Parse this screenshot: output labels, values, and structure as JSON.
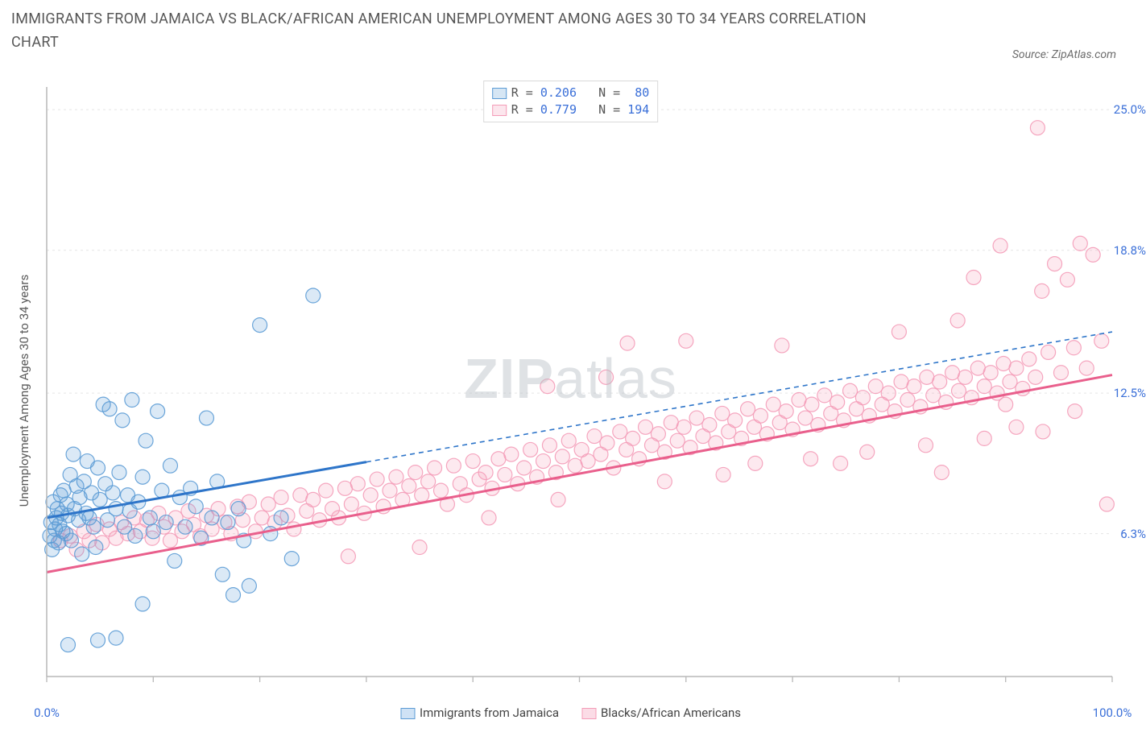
{
  "title": "IMMIGRANTS FROM JAMAICA VS BLACK/AFRICAN AMERICAN UNEMPLOYMENT AMONG AGES 30 TO 34 YEARS CORRELATION CHART",
  "source": "Source: ZipAtlas.com",
  "watermark_a": "ZIP",
  "watermark_b": "atlas",
  "chart": {
    "type": "scatter",
    "xlim": [
      0,
      100
    ],
    "ylim": [
      0,
      26
    ],
    "ylabel": "Unemployment Among Ages 30 to 34 years",
    "yticks": [
      {
        "v": 6.3,
        "l": "6.3%"
      },
      {
        "v": 12.5,
        "l": "12.5%"
      },
      {
        "v": 18.8,
        "l": "18.8%"
      },
      {
        "v": 25.0,
        "l": "25.0%"
      }
    ],
    "xticks": [
      {
        "v": 0,
        "l": "0.0%"
      },
      {
        "v": 100,
        "l": "100.0%"
      }
    ],
    "xticks_minor": [
      10,
      20,
      30,
      40,
      50,
      60,
      70,
      80,
      90
    ],
    "background_color": "#ffffff",
    "grid_color": "#e5e5e5",
    "axis_color": "#b8b8b8",
    "marker_radius": 9,
    "marker_fill_opacity": 0.22,
    "marker_stroke_opacity": 0.9,
    "marker_stroke_width": 1.2,
    "trend_stroke_width": 3,
    "series": [
      {
        "name": "Immigrants from Jamaica",
        "color": "#5b9bd5",
        "stroke": "#2e75c9",
        "R": "0.206",
        "N": "80",
        "trend": {
          "x1": 0,
          "y1": 7.0,
          "x2": 100,
          "y2": 15.2,
          "solid_until_x": 30
        },
        "points": [
          [
            0.3,
            6.2
          ],
          [
            0.4,
            6.8
          ],
          [
            0.5,
            5.6
          ],
          [
            0.6,
            7.7
          ],
          [
            0.7,
            6.0
          ],
          [
            0.8,
            6.5
          ],
          [
            0.9,
            7.0
          ],
          [
            1.0,
            7.4
          ],
          [
            1.1,
            5.9
          ],
          [
            1.2,
            6.7
          ],
          [
            1.3,
            8.0
          ],
          [
            1.4,
            7.2
          ],
          [
            1.5,
            6.4
          ],
          [
            1.6,
            8.2
          ],
          [
            1.8,
            6.3
          ],
          [
            1.9,
            7.6
          ],
          [
            2.0,
            7.1
          ],
          [
            2.2,
            8.9
          ],
          [
            2.3,
            6.0
          ],
          [
            2.5,
            9.8
          ],
          [
            2.6,
            7.4
          ],
          [
            2.8,
            8.4
          ],
          [
            3.0,
            6.9
          ],
          [
            3.1,
            7.9
          ],
          [
            3.3,
            5.4
          ],
          [
            3.5,
            8.6
          ],
          [
            3.7,
            7.2
          ],
          [
            3.8,
            9.5
          ],
          [
            4.0,
            7.0
          ],
          [
            4.2,
            8.1
          ],
          [
            4.4,
            6.6
          ],
          [
            4.6,
            5.7
          ],
          [
            4.8,
            9.2
          ],
          [
            5.0,
            7.8
          ],
          [
            5.3,
            12.0
          ],
          [
            5.5,
            8.5
          ],
          [
            5.7,
            6.9
          ],
          [
            5.9,
            11.8
          ],
          [
            6.2,
            8.1
          ],
          [
            6.5,
            7.4
          ],
          [
            6.8,
            9.0
          ],
          [
            7.1,
            11.3
          ],
          [
            7.3,
            6.6
          ],
          [
            7.6,
            8.0
          ],
          [
            7.8,
            7.3
          ],
          [
            8.0,
            12.2
          ],
          [
            8.3,
            6.2
          ],
          [
            8.6,
            7.7
          ],
          [
            9.0,
            8.8
          ],
          [
            9.3,
            10.4
          ],
          [
            9.7,
            7.0
          ],
          [
            10.0,
            6.4
          ],
          [
            10.4,
            11.7
          ],
          [
            10.8,
            8.2
          ],
          [
            11.2,
            6.8
          ],
          [
            11.6,
            9.3
          ],
          [
            12.0,
            5.1
          ],
          [
            12.5,
            7.9
          ],
          [
            13.0,
            6.6
          ],
          [
            13.5,
            8.3
          ],
          [
            14.0,
            7.5
          ],
          [
            14.5,
            6.1
          ],
          [
            15.0,
            11.4
          ],
          [
            15.5,
            7.0
          ],
          [
            16.0,
            8.6
          ],
          [
            16.5,
            4.5
          ],
          [
            17.0,
            6.8
          ],
          [
            17.5,
            3.6
          ],
          [
            18.0,
            7.4
          ],
          [
            18.5,
            6.0
          ],
          [
            19.0,
            4.0
          ],
          [
            20.0,
            15.5
          ],
          [
            21.0,
            6.3
          ],
          [
            22.0,
            7.0
          ],
          [
            23.0,
            5.2
          ],
          [
            25.0,
            16.8
          ],
          [
            2.0,
            1.4
          ],
          [
            4.8,
            1.6
          ],
          [
            6.5,
            1.7
          ],
          [
            9.0,
            3.2
          ]
        ]
      },
      {
        "name": "Blacks/African Americans",
        "color": "#f49cb8",
        "stroke": "#e95f8c",
        "R": "0.779",
        "N": "194",
        "trend": {
          "x1": 0,
          "y1": 4.6,
          "x2": 100,
          "y2": 13.3,
          "solid_until_x": 100
        },
        "points": [
          [
            1.3,
            6.0
          ],
          [
            2.2,
            6.2
          ],
          [
            2.8,
            5.6
          ],
          [
            3.5,
            6.4
          ],
          [
            4.0,
            6.0
          ],
          [
            4.7,
            6.7
          ],
          [
            5.2,
            5.9
          ],
          [
            5.9,
            6.5
          ],
          [
            6.5,
            6.1
          ],
          [
            7.0,
            6.8
          ],
          [
            7.6,
            6.3
          ],
          [
            8.2,
            7.0
          ],
          [
            8.8,
            6.4
          ],
          [
            9.4,
            6.9
          ],
          [
            9.9,
            6.1
          ],
          [
            10.5,
            7.2
          ],
          [
            11.0,
            6.6
          ],
          [
            11.6,
            6.0
          ],
          [
            12.1,
            7.0
          ],
          [
            12.7,
            6.4
          ],
          [
            13.3,
            7.3
          ],
          [
            13.8,
            6.7
          ],
          [
            14.4,
            6.2
          ],
          [
            15.0,
            7.1
          ],
          [
            15.5,
            6.5
          ],
          [
            16.1,
            7.4
          ],
          [
            16.7,
            6.8
          ],
          [
            17.3,
            6.3
          ],
          [
            17.9,
            7.5
          ],
          [
            18.4,
            6.9
          ],
          [
            19.0,
            7.7
          ],
          [
            19.6,
            6.4
          ],
          [
            20.2,
            7.0
          ],
          [
            20.8,
            7.6
          ],
          [
            21.4,
            6.8
          ],
          [
            22.0,
            7.9
          ],
          [
            22.6,
            7.1
          ],
          [
            23.2,
            6.5
          ],
          [
            23.8,
            8.0
          ],
          [
            24.4,
            7.3
          ],
          [
            25.0,
            7.8
          ],
          [
            25.6,
            6.9
          ],
          [
            26.2,
            8.2
          ],
          [
            26.8,
            7.4
          ],
          [
            27.4,
            7.0
          ],
          [
            28.0,
            8.3
          ],
          [
            28.6,
            7.6
          ],
          [
            29.2,
            8.5
          ],
          [
            29.8,
            7.2
          ],
          [
            30.4,
            8.0
          ],
          [
            31.0,
            8.7
          ],
          [
            31.6,
            7.5
          ],
          [
            32.2,
            8.2
          ],
          [
            32.8,
            8.8
          ],
          [
            33.4,
            7.8
          ],
          [
            34.0,
            8.4
          ],
          [
            34.6,
            9.0
          ],
          [
            35.2,
            8.0
          ],
          [
            35.8,
            8.6
          ],
          [
            36.4,
            9.2
          ],
          [
            37.0,
            8.2
          ],
          [
            37.6,
            7.6
          ],
          [
            38.2,
            9.3
          ],
          [
            38.8,
            8.5
          ],
          [
            39.4,
            8.0
          ],
          [
            40.0,
            9.5
          ],
          [
            40.6,
            8.7
          ],
          [
            41.2,
            9.0
          ],
          [
            41.8,
            8.3
          ],
          [
            42.4,
            9.6
          ],
          [
            43.0,
            8.9
          ],
          [
            43.6,
            9.8
          ],
          [
            44.2,
            8.5
          ],
          [
            44.8,
            9.2
          ],
          [
            45.4,
            10.0
          ],
          [
            46.0,
            8.8
          ],
          [
            46.6,
            9.5
          ],
          [
            47.2,
            10.2
          ],
          [
            47.8,
            9.0
          ],
          [
            48.4,
            9.7
          ],
          [
            49.0,
            10.4
          ],
          [
            49.6,
            9.3
          ],
          [
            50.2,
            10.0
          ],
          [
            50.8,
            9.5
          ],
          [
            51.4,
            10.6
          ],
          [
            52.0,
            9.8
          ],
          [
            52.6,
            10.3
          ],
          [
            53.2,
            9.2
          ],
          [
            53.8,
            10.8
          ],
          [
            54.4,
            10.0
          ],
          [
            55.0,
            10.5
          ],
          [
            55.6,
            9.6
          ],
          [
            56.2,
            11.0
          ],
          [
            56.8,
            10.2
          ],
          [
            57.4,
            10.7
          ],
          [
            58.0,
            9.9
          ],
          [
            58.6,
            11.2
          ],
          [
            59.2,
            10.4
          ],
          [
            59.8,
            11.0
          ],
          [
            60.4,
            10.1
          ],
          [
            61.0,
            11.4
          ],
          [
            61.6,
            10.6
          ],
          [
            62.2,
            11.1
          ],
          [
            62.8,
            10.3
          ],
          [
            63.4,
            11.6
          ],
          [
            64.0,
            10.8
          ],
          [
            64.6,
            11.3
          ],
          [
            65.2,
            10.5
          ],
          [
            65.8,
            11.8
          ],
          [
            66.4,
            11.0
          ],
          [
            67.0,
            11.5
          ],
          [
            67.6,
            10.7
          ],
          [
            68.2,
            12.0
          ],
          [
            68.8,
            11.2
          ],
          [
            69.4,
            11.7
          ],
          [
            70.0,
            10.9
          ],
          [
            70.6,
            12.2
          ],
          [
            71.2,
            11.4
          ],
          [
            71.8,
            12.0
          ],
          [
            72.4,
            11.1
          ],
          [
            73.0,
            12.4
          ],
          [
            73.6,
            11.6
          ],
          [
            74.2,
            12.1
          ],
          [
            74.8,
            11.3
          ],
          [
            75.4,
            12.6
          ],
          [
            76.0,
            11.8
          ],
          [
            76.6,
            12.3
          ],
          [
            77.2,
            11.5
          ],
          [
            77.8,
            12.8
          ],
          [
            78.4,
            12.0
          ],
          [
            79.0,
            12.5
          ],
          [
            79.6,
            11.7
          ],
          [
            80.2,
            13.0
          ],
          [
            80.8,
            12.2
          ],
          [
            81.4,
            12.8
          ],
          [
            82.0,
            11.9
          ],
          [
            82.6,
            13.2
          ],
          [
            83.2,
            12.4
          ],
          [
            83.8,
            13.0
          ],
          [
            84.4,
            12.1
          ],
          [
            85.0,
            13.4
          ],
          [
            85.6,
            12.6
          ],
          [
            86.2,
            13.2
          ],
          [
            86.8,
            12.3
          ],
          [
            87.4,
            13.6
          ],
          [
            88.0,
            12.8
          ],
          [
            88.6,
            13.4
          ],
          [
            89.2,
            12.5
          ],
          [
            89.8,
            13.8
          ],
          [
            90.4,
            13.0
          ],
          [
            91.0,
            13.6
          ],
          [
            91.6,
            12.7
          ],
          [
            92.2,
            14.0
          ],
          [
            92.8,
            13.2
          ],
          [
            93.4,
            17.0
          ],
          [
            94.0,
            14.3
          ],
          [
            94.6,
            18.2
          ],
          [
            95.2,
            13.4
          ],
          [
            95.8,
            17.5
          ],
          [
            96.4,
            14.5
          ],
          [
            97.0,
            19.1
          ],
          [
            97.6,
            13.6
          ],
          [
            98.2,
            18.6
          ],
          [
            99.0,
            14.8
          ],
          [
            99.5,
            7.6
          ],
          [
            93.0,
            24.2
          ],
          [
            28.3,
            5.3
          ],
          [
            35.0,
            5.7
          ],
          [
            41.5,
            7.0
          ],
          [
            48.0,
            7.8
          ],
          [
            54.5,
            14.7
          ],
          [
            60.0,
            14.8
          ],
          [
            66.5,
            9.4
          ],
          [
            71.7,
            9.6
          ],
          [
            77.0,
            9.9
          ],
          [
            82.5,
            10.2
          ],
          [
            88.0,
            10.5
          ],
          [
            93.5,
            10.8
          ],
          [
            87.0,
            17.6
          ],
          [
            89.5,
            19.0
          ],
          [
            47.0,
            12.8
          ],
          [
            52.5,
            13.2
          ],
          [
            58.0,
            8.6
          ],
          [
            63.5,
            8.9
          ],
          [
            69.0,
            14.6
          ],
          [
            74.5,
            9.4
          ],
          [
            80.0,
            15.2
          ],
          [
            85.5,
            15.7
          ],
          [
            91.0,
            11.0
          ],
          [
            96.5,
            11.7
          ],
          [
            84.0,
            9.0
          ],
          [
            90.0,
            12.0
          ]
        ]
      }
    ]
  },
  "legend_bottom": [
    {
      "label": "Immigrants from Jamaica",
      "fill": "#cfe2f5",
      "stroke": "#5b9bd5"
    },
    {
      "label": "Blacks/African Americans",
      "fill": "#fbdce6",
      "stroke": "#f49cb8"
    }
  ]
}
